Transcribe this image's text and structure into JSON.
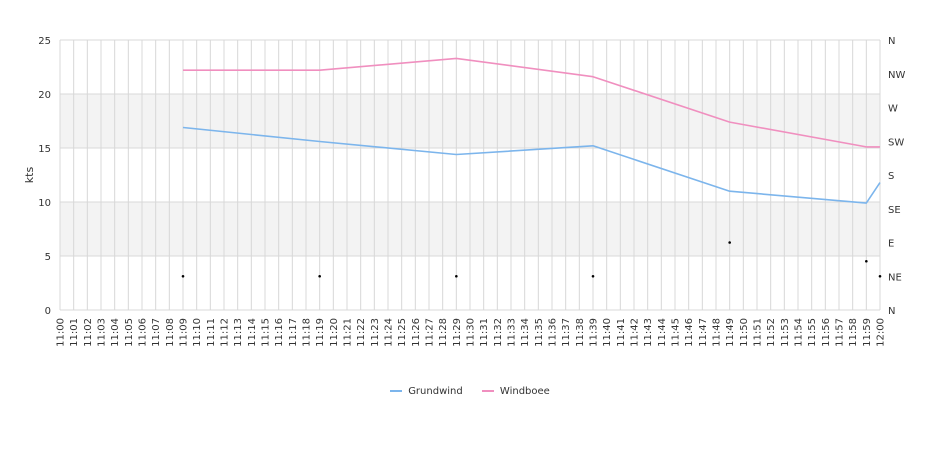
{
  "chart_data": {
    "type": "line",
    "ylabel": "kts",
    "ylim": [
      0,
      25
    ],
    "y_ticks": [
      0,
      5,
      10,
      15,
      20,
      25
    ],
    "x_time_start": "11:00",
    "x_time_end": "12:00",
    "x_tick_labels": [
      "11:00",
      "11:01",
      "11:02",
      "11:03",
      "11:04",
      "11:05",
      "11:06",
      "11:07",
      "11:08",
      "11:09",
      "11:10",
      "11:11",
      "11:12",
      "11:13",
      "11:14",
      "11:15",
      "11:16",
      "11:17",
      "11:18",
      "11:19",
      "11:20",
      "11:21",
      "11:22",
      "11:23",
      "11:24",
      "11:25",
      "11:26",
      "11:27",
      "11:28",
      "11:29",
      "11:30",
      "11:31",
      "11:32",
      "11:33",
      "11:34",
      "11:35",
      "11:36",
      "11:37",
      "11:38",
      "11:39",
      "11:40",
      "11:41",
      "11:42",
      "11:43",
      "11:44",
      "11:45",
      "11:46",
      "11:47",
      "11:48",
      "11:49",
      "11:50",
      "11:51",
      "11:52",
      "11:53",
      "11:54",
      "11:55",
      "11:56",
      "11:57",
      "11:58",
      "11:59",
      "12:00"
    ],
    "y2_labels": [
      "N",
      "NE",
      "E",
      "SE",
      "S",
      "SW",
      "W",
      "NW",
      "N"
    ],
    "series": [
      {
        "name": "Grundwind",
        "color": "#7cb5ec",
        "x": [
          "11:09",
          "11:19",
          "11:29",
          "11:39",
          "11:49",
          "11:59",
          "12:00"
        ],
        "values": [
          16.9,
          15.6,
          14.4,
          15.2,
          11.0,
          9.9,
          11.8
        ]
      },
      {
        "name": "Windboee",
        "color": "#f08fbf",
        "x": [
          "11:09",
          "11:19",
          "11:29",
          "11:39",
          "11:49",
          "11:59",
          "12:00"
        ],
        "values": [
          22.2,
          22.2,
          23.3,
          21.6,
          17.4,
          15.1,
          15.1
        ]
      }
    ],
    "direction_points": {
      "x": [
        "11:09",
        "11:19",
        "11:29",
        "11:39",
        "11:49",
        "11:59",
        "12:00"
      ],
      "degrees": [
        45,
        45,
        45,
        45,
        90,
        65,
        45
      ]
    },
    "grid": true,
    "bands": [
      [
        5,
        10
      ],
      [
        15,
        20
      ]
    ],
    "legend_position": "bottom-center"
  }
}
